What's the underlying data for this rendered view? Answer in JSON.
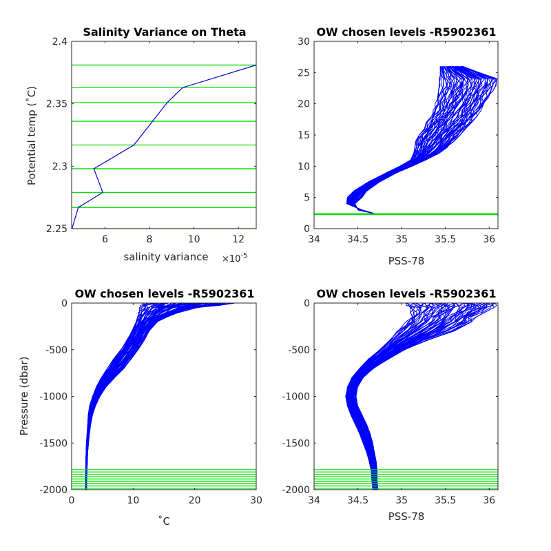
{
  "chart_data": [
    {
      "id": "p1",
      "type": "line",
      "title": "Salinity Variance on Theta",
      "xlabel": "salinity variance",
      "ylabel": "Potential temp (˚C)",
      "x_exponent_base": "×10",
      "x_exponent_power": "-5",
      "xlim": [
        4.5,
        12.8
      ],
      "ylim": [
        2.25,
        2.4
      ],
      "xticks": [
        6,
        8,
        10,
        12
      ],
      "xtick_labels": [
        "6",
        "8",
        "10",
        "12"
      ],
      "yticks": [
        2.25,
        2.3,
        2.35,
        2.4
      ],
      "ytick_labels": [
        "2.25",
        "2.3",
        "2.35",
        "2.4"
      ],
      "series": [
        {
          "color": "#0000cc",
          "x": [
            4.5,
            4.8,
            5.9,
            5.5,
            7.3,
            8.8,
            9.5,
            12.8
          ],
          "y": [
            2.249,
            2.267,
            2.279,
            2.298,
            2.317,
            2.351,
            2.363,
            2.381
          ]
        }
      ],
      "hlines": {
        "color": "#00e000",
        "values": [
          2.249,
          2.25,
          2.267,
          2.279,
          2.298,
          2.317,
          2.336,
          2.351,
          2.363,
          2.381
        ]
      },
      "grid": false
    },
    {
      "id": "p2",
      "type": "line",
      "title": "OW chosen levels -R5902361",
      "xlabel": "PSS-78",
      "ylabel": "",
      "xlim": [
        34,
        36.1
      ],
      "ylim": [
        0,
        30
      ],
      "xticks": [
        34,
        34.5,
        35,
        35.5,
        36
      ],
      "xtick_labels": [
        "34",
        "34.5",
        "35",
        "35.5",
        "36"
      ],
      "yticks": [
        0,
        5,
        10,
        15,
        20,
        25,
        30
      ],
      "ytick_labels": [
        "0",
        "5",
        "10",
        "15",
        "20",
        "25",
        "30"
      ],
      "profile_envelope": {
        "color": "#0000ff",
        "count": 60,
        "y": [
          2.3,
          3,
          4,
          5,
          6,
          7.5,
          9,
          10,
          11,
          12,
          13,
          14,
          15,
          16,
          17,
          18,
          19,
          20,
          21,
          22,
          23,
          24,
          25,
          26
        ],
        "x_lo": [
          34.72,
          34.55,
          34.37,
          34.38,
          34.45,
          34.62,
          34.83,
          34.98,
          35.1,
          35.13,
          35.15,
          35.16,
          35.2,
          35.25,
          35.28,
          35.32,
          35.36,
          35.38,
          35.4,
          35.42,
          35.43,
          35.43,
          35.44,
          35.44
        ],
        "x_hi": [
          34.72,
          34.5,
          34.47,
          34.55,
          34.6,
          34.75,
          34.95,
          35.12,
          35.28,
          35.42,
          35.52,
          35.6,
          35.67,
          35.73,
          35.8,
          35.86,
          35.91,
          35.96,
          36.0,
          36.04,
          36.08,
          36.09,
          35.9,
          35.7
        ]
      },
      "hlines": {
        "color": "#00e000",
        "values": [
          2.25,
          2.3,
          2.35,
          2.4
        ]
      },
      "grid": false
    },
    {
      "id": "p3",
      "type": "line",
      "title": "OW chosen levels -R5902361",
      "xlabel": "˚C",
      "ylabel": "Pressure (dbar)",
      "xlim": [
        0,
        30
      ],
      "ylim": [
        -2000,
        0
      ],
      "xticks": [
        0,
        10,
        20,
        30
      ],
      "xtick_labels": [
        "0",
        "10",
        "20",
        "30"
      ],
      "yticks": [
        -2000,
        -1500,
        -1000,
        -500,
        0
      ],
      "ytick_labels": [
        "-2000",
        "-1500",
        "-1000",
        "-500",
        "0"
      ],
      "profile_envelope": {
        "color": "#0000ff",
        "count": 60,
        "y": [
          0,
          -25,
          -50,
          -100,
          -150,
          -200,
          -300,
          -400,
          -500,
          -600,
          -700,
          -800,
          -900,
          -1000,
          -1100,
          -1200,
          -1300,
          -1400,
          -1500,
          -1600,
          -1700,
          -1800,
          -1900,
          -2000
        ],
        "x_lo": [
          11.5,
          11.2,
          11.0,
          10.8,
          10.7,
          10.5,
          9.8,
          8.9,
          8.0,
          6.8,
          5.8,
          4.8,
          4.0,
          3.4,
          2.9,
          2.7,
          2.6,
          2.5,
          2.4,
          2.35,
          2.3,
          2.28,
          2.26,
          2.25
        ],
        "x_hi": [
          26.5,
          24.0,
          20.5,
          17.5,
          15.5,
          14.0,
          12.6,
          11.8,
          10.9,
          9.7,
          8.5,
          7.0,
          5.6,
          4.6,
          3.9,
          3.4,
          3.1,
          2.9,
          2.75,
          2.62,
          2.55,
          2.5,
          2.45,
          2.42
        ]
      },
      "hlines": {
        "color": "#00e000",
        "values": [
          -1785,
          -1810,
          -1835,
          -1860,
          -1885,
          -1910,
          -1935,
          -1960,
          -1985,
          -2000
        ]
      },
      "grid": false
    },
    {
      "id": "p4",
      "type": "line",
      "title": "OW chosen levels -R5902361",
      "xlabel": "PSS-78",
      "ylabel": "",
      "xlim": [
        34,
        36.1
      ],
      "ylim": [
        -2000,
        0
      ],
      "xticks": [
        34,
        34.5,
        35,
        35.5,
        36
      ],
      "xtick_labels": [
        "34",
        "34.5",
        "35",
        "35.5",
        "36"
      ],
      "yticks": [
        -2000,
        -1500,
        -1000,
        -500,
        0
      ],
      "ytick_labels": [
        "-2000",
        "-1500",
        "-1000",
        "-500",
        "0"
      ],
      "profile_envelope": {
        "color": "#0000ff",
        "count": 60,
        "y": [
          0,
          -25,
          -50,
          -100,
          -150,
          -200,
          -300,
          -400,
          -500,
          -600,
          -700,
          -800,
          -900,
          -1000,
          -1100,
          -1200,
          -1300,
          -1400,
          -1500,
          -1600,
          -1700,
          -1800,
          -1900,
          -2000
        ],
        "x_lo": [
          35.05,
          35.05,
          35.1,
          35.1,
          35.08,
          35.05,
          34.95,
          34.85,
          34.75,
          34.62,
          34.52,
          34.43,
          34.38,
          34.36,
          34.38,
          34.42,
          34.47,
          34.52,
          34.56,
          34.6,
          34.63,
          34.65,
          34.66,
          34.67
        ],
        "x_hi": [
          36.1,
          36.1,
          36.05,
          35.95,
          35.85,
          35.8,
          35.6,
          35.3,
          35.05,
          34.85,
          34.68,
          34.56,
          34.5,
          34.48,
          34.5,
          34.55,
          34.6,
          34.64,
          34.67,
          34.69,
          34.71,
          34.72,
          34.72,
          34.73
        ]
      },
      "hlines": {
        "color": "#00e000",
        "values": [
          -1785,
          -1810,
          -1835,
          -1860,
          -1885,
          -1910,
          -1935,
          -1960,
          -1985,
          -2000
        ]
      },
      "grid": false
    }
  ]
}
